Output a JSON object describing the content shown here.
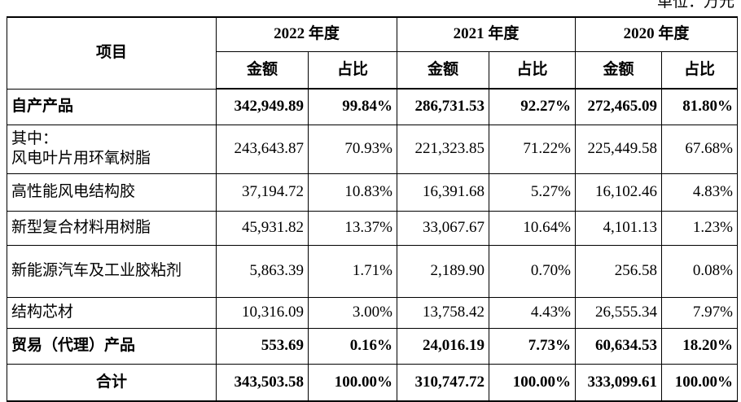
{
  "unit": "单位：万元",
  "table": {
    "header": {
      "item": "项目",
      "years": [
        "2022 年度",
        "2021 年度",
        "2020 年度"
      ],
      "subheaders": [
        "金额",
        "占比",
        "金额",
        "占比",
        "金额",
        "占比"
      ]
    },
    "rows": [
      [
        "自产产品",
        "342,949.89",
        "99.84%",
        "286,731.53",
        "92.27%",
        "272,465.09",
        "81.80%"
      ],
      [
        "其中：\n风电叶片用环氧树脂",
        "243,643.87",
        "70.93%",
        "221,323.85",
        "71.22%",
        "225,449.58",
        "67.68%"
      ],
      [
        "高性能风电结构胶",
        "37,194.72",
        "10.83%",
        "16,391.68",
        "5.27%",
        "16,102.46",
        "4.83%"
      ],
      [
        "新型复合材料用树脂",
        "45,931.82",
        "13.37%",
        "33,067.67",
        "10.64%",
        "4,101.13",
        "1.23%"
      ],
      [
        "新能源汽车及工业胶粘剂",
        "5,863.39",
        "1.71%",
        "2,189.90",
        "0.70%",
        "256.58",
        "0.08%"
      ],
      [
        "结构芯材",
        "10,316.09",
        "3.00%",
        "13,758.42",
        "4.43%",
        "26,555.34",
        "7.97%"
      ],
      [
        "贸易（代理）产品",
        "553.69",
        "0.16%",
        "24,016.19",
        "7.73%",
        "60,634.53",
        "18.20%"
      ],
      [
        "合计",
        "343,503.58",
        "100.00%",
        "310,747.72",
        "100.00%",
        "333,099.61",
        "100.00%"
      ]
    ]
  }
}
